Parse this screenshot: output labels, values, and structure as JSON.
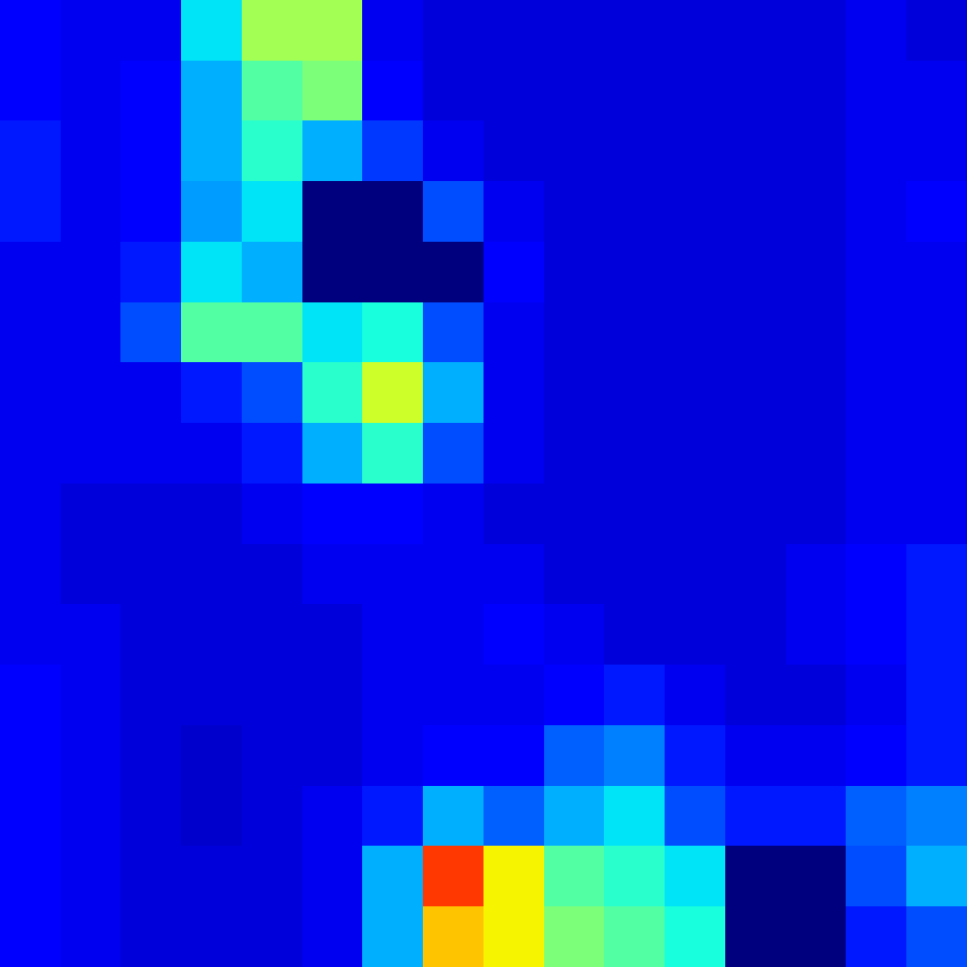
{
  "chart_data": {
    "type": "heatmap",
    "color": "jet",
    "tick_labels": false,
    "grid": false,
    "zlim": [
      0,
      1
    ],
    "cells": [
      [
        0.12,
        0.1,
        0.1,
        0.35,
        0.55,
        0.55,
        0.1,
        0.08,
        0.08,
        0.08,
        0.08,
        0.08,
        0.08,
        0.08,
        0.1,
        0.08
      ],
      [
        0.12,
        0.1,
        0.12,
        0.3,
        0.45,
        0.5,
        0.12,
        0.08,
        0.08,
        0.08,
        0.08,
        0.08,
        0.08,
        0.08,
        0.1,
        0.1
      ],
      [
        0.15,
        0.1,
        0.12,
        0.3,
        0.4,
        0.3,
        0.18,
        0.1,
        0.08,
        0.08,
        0.08,
        0.08,
        0.08,
        0.08,
        0.1,
        0.1
      ],
      [
        0.15,
        0.1,
        0.12,
        0.28,
        0.35,
        0.0,
        0.0,
        0.2,
        0.1,
        0.08,
        0.08,
        0.08,
        0.08,
        0.08,
        0.1,
        0.12
      ],
      [
        0.1,
        0.1,
        0.15,
        0.35,
        0.3,
        0.0,
        0.0,
        0.0,
        0.12,
        0.08,
        0.08,
        0.08,
        0.08,
        0.08,
        0.1,
        0.1
      ],
      [
        0.1,
        0.1,
        0.2,
        0.45,
        0.45,
        0.35,
        0.38,
        0.2,
        0.1,
        0.08,
        0.08,
        0.08,
        0.08,
        0.08,
        0.1,
        0.1
      ],
      [
        0.1,
        0.1,
        0.1,
        0.15,
        0.2,
        0.4,
        0.6,
        0.3,
        0.1,
        0.08,
        0.08,
        0.08,
        0.08,
        0.08,
        0.1,
        0.1
      ],
      [
        0.1,
        0.1,
        0.1,
        0.1,
        0.15,
        0.3,
        0.4,
        0.2,
        0.1,
        0.08,
        0.08,
        0.08,
        0.08,
        0.08,
        0.1,
        0.1
      ],
      [
        0.1,
        0.08,
        0.08,
        0.08,
        0.1,
        0.12,
        0.12,
        0.1,
        0.08,
        0.08,
        0.08,
        0.08,
        0.08,
        0.08,
        0.1,
        0.1
      ],
      [
        0.1,
        0.08,
        0.08,
        0.08,
        0.08,
        0.1,
        0.1,
        0.1,
        0.1,
        0.08,
        0.08,
        0.08,
        0.08,
        0.1,
        0.12,
        0.15
      ],
      [
        0.1,
        0.1,
        0.08,
        0.08,
        0.08,
        0.08,
        0.1,
        0.1,
        0.12,
        0.1,
        0.08,
        0.08,
        0.08,
        0.1,
        0.12,
        0.15
      ],
      [
        0.12,
        0.1,
        0.08,
        0.08,
        0.08,
        0.08,
        0.1,
        0.1,
        0.1,
        0.12,
        0.15,
        0.1,
        0.08,
        0.08,
        0.1,
        0.15
      ],
      [
        0.12,
        0.1,
        0.08,
        0.07,
        0.08,
        0.08,
        0.1,
        0.12,
        0.12,
        0.22,
        0.25,
        0.15,
        0.1,
        0.1,
        0.12,
        0.15
      ],
      [
        0.12,
        0.1,
        0.08,
        0.07,
        0.08,
        0.1,
        0.15,
        0.3,
        0.22,
        0.3,
        0.35,
        0.2,
        0.15,
        0.15,
        0.22,
        0.25
      ],
      [
        0.12,
        0.1,
        0.08,
        0.08,
        0.08,
        0.1,
        0.3,
        0.85,
        0.65,
        0.45,
        0.4,
        0.35,
        0.0,
        0.0,
        0.2,
        0.3
      ],
      [
        0.12,
        0.1,
        0.08,
        0.08,
        0.08,
        0.1,
        0.3,
        0.7,
        0.65,
        0.5,
        0.45,
        0.38,
        0.0,
        0.0,
        0.15,
        0.2
      ]
    ]
  }
}
